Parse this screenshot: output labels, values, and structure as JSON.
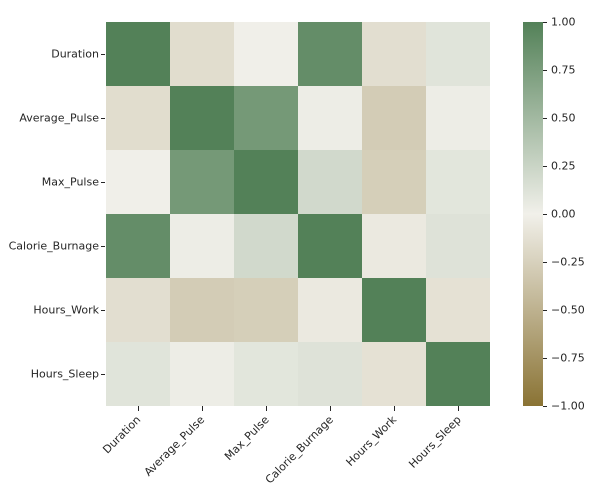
{
  "figure": {
    "background": "#ffffff",
    "text_color": "#262626"
  },
  "chart_data": {
    "type": "heatmap",
    "title": "",
    "xlabel": "",
    "ylabel": "",
    "categories": [
      "Duration",
      "Average_Pulse",
      "Max_Pulse",
      "Calorie_Burnage",
      "Hours_Work",
      "Hours_Sleep"
    ],
    "matrix": [
      [
        1.0,
        -0.155,
        0.009,
        0.89,
        -0.145,
        0.107
      ],
      [
        -0.155,
        1.0,
        0.787,
        0.025,
        -0.288,
        0.028
      ],
      [
        0.009,
        0.787,
        1.0,
        0.204,
        -0.267,
        0.093
      ],
      [
        0.89,
        0.025,
        0.204,
        1.0,
        -0.057,
        0.122
      ],
      [
        -0.145,
        -0.288,
        -0.267,
        -0.057,
        1.0,
        -0.119
      ],
      [
        0.107,
        0.028,
        0.093,
        0.122,
        -0.119,
        1.0
      ]
    ],
    "vmin": -1,
    "vmax": 1,
    "grid": false,
    "colormap": {
      "positive": "#538158",
      "center": "#f1f0ea",
      "negative": "#8a7334"
    },
    "colorbar": {
      "position": "right",
      "tick_values": [
        1.0,
        0.75,
        0.5,
        0.25,
        0.0,
        -0.25,
        -0.5,
        -0.75,
        -1.0
      ],
      "tick_labels": [
        "1.00",
        "0.75",
        "0.50",
        "0.25",
        "0.00",
        "−0.25",
        "−0.50",
        "−0.75",
        "−1.00"
      ]
    }
  }
}
